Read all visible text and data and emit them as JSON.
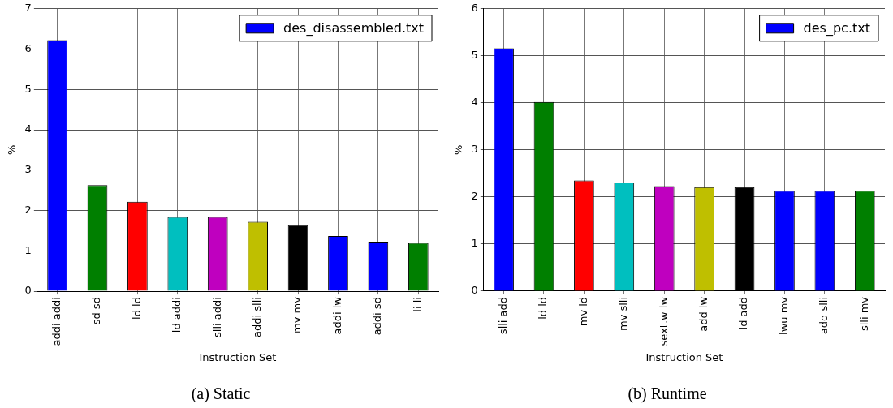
{
  "chart_data": [
    {
      "type": "bar",
      "title": "(a) Static",
      "xlabel": "Instruction Set",
      "ylabel": "%",
      "categories": [
        "addi addi",
        "sd sd",
        "ld ld",
        "ld addi",
        "slli addi",
        "addi slli",
        "mv mv",
        "addi lw",
        "addi sd",
        "li li"
      ],
      "series": [
        {
          "name": "des_disassembled.txt",
          "color": "#0000ff",
          "colors": [
            "#0000ff",
            "#007f00",
            "#ff0000",
            "#00bfbf",
            "#bf00bf",
            "#bfbf00",
            "#000000",
            "#0000ff",
            "#0000ff",
            "#007f00"
          ],
          "values": [
            6.22,
            2.63,
            2.22,
            1.84,
            1.84,
            1.72,
            1.64,
            1.37,
            1.23,
            1.2
          ]
        }
      ],
      "ylim": [
        0,
        7
      ],
      "yticks": [
        0,
        1,
        2,
        3,
        4,
        5,
        6,
        7
      ],
      "grid": true,
      "legend": "top right"
    },
    {
      "type": "bar",
      "title": "(b) Runtime",
      "xlabel": "Instruction Set",
      "ylabel": "%",
      "categories": [
        "slli add",
        "ld ld",
        "mv ld",
        "mv slli",
        "sext.w lw",
        "add lw",
        "ld add",
        "lwu mv",
        "add slli",
        "slli mv"
      ],
      "series": [
        {
          "name": "des_pc.txt",
          "color": "#0000ff",
          "colors": [
            "#0000ff",
            "#007f00",
            "#ff0000",
            "#00bfbf",
            "#bf00bf",
            "#bfbf00",
            "#000000",
            "#0000ff",
            "#0000ff",
            "#007f00"
          ],
          "values": [
            5.16,
            4.02,
            2.35,
            2.31,
            2.23,
            2.21,
            2.21,
            2.13,
            2.13,
            2.13
          ]
        }
      ],
      "ylim": [
        0,
        6
      ],
      "yticks": [
        0,
        1,
        2,
        3,
        4,
        5,
        6
      ],
      "grid": true,
      "legend": "top right"
    }
  ]
}
